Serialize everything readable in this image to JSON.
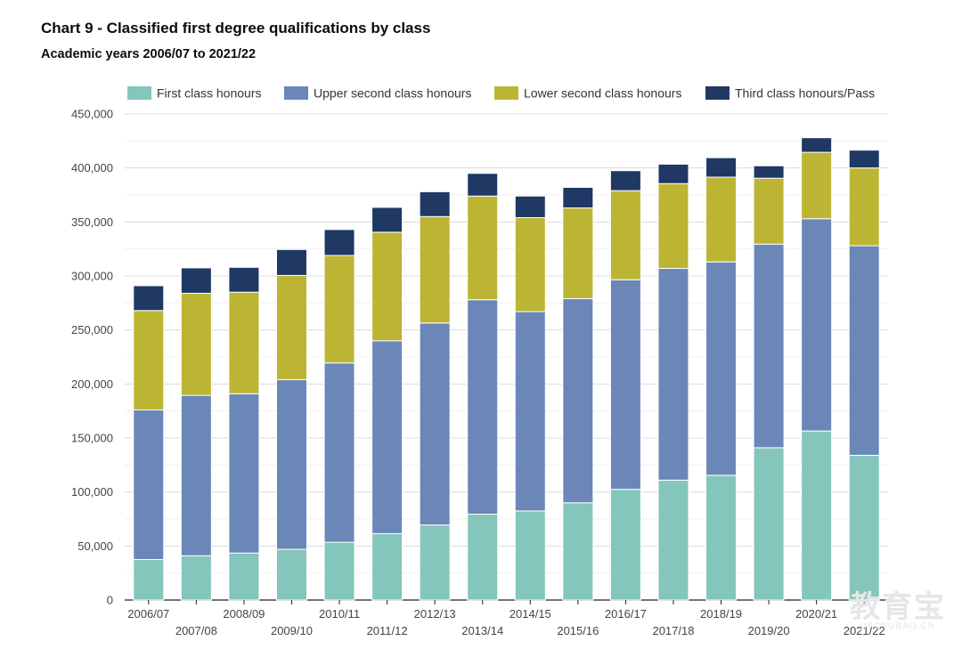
{
  "title": "Chart 9 - Classified first degree qualifications by class",
  "subtitle": "Academic years 2006/07 to 2021/22",
  "watermark": {
    "big": "教育宝",
    "small": "JIAOYUBAO.CN"
  },
  "colors": {
    "first": "#84c6bb",
    "upper": "#6b87b8",
    "lower": "#bcb533",
    "third": "#1f3864",
    "grid": "#dcdcdc",
    "axis": "#222222"
  },
  "chart_data": {
    "type": "bar",
    "stacked": true,
    "legend_position": "top",
    "grid": true,
    "categories": [
      "2006/07",
      "2007/08",
      "2008/09",
      "2009/10",
      "2010/11",
      "2011/12",
      "2012/13",
      "2013/14",
      "2014/15",
      "2015/16",
      "2016/17",
      "2017/18",
      "2018/19",
      "2019/20",
      "2020/21",
      "2021/22"
    ],
    "ylim": [
      0,
      450000
    ],
    "yticks": [
      0,
      50000,
      100000,
      150000,
      200000,
      250000,
      300000,
      350000,
      400000,
      450000
    ],
    "ytick_labels": [
      "0",
      "50,000",
      "100,000",
      "150,000",
      "200,000",
      "250,000",
      "300,000",
      "350,000",
      "400,000",
      "450,000"
    ],
    "series": [
      {
        "name": "First class honours",
        "key": "first",
        "values": [
          37500,
          41000,
          43500,
          47000,
          53500,
          61500,
          69500,
          79500,
          82500,
          90000,
          102500,
          111000,
          115500,
          141000,
          156500,
          134000
        ]
      },
      {
        "name": "Upper second class honours",
        "key": "upper",
        "values": [
          138500,
          148500,
          147500,
          157000,
          166000,
          178500,
          187000,
          198500,
          184500,
          189000,
          194000,
          196000,
          197500,
          188500,
          196500,
          194000
        ]
      },
      {
        "name": "Lower second class honours",
        "key": "lower",
        "values": [
          92000,
          94500,
          94000,
          96500,
          99500,
          100500,
          98500,
          96000,
          87000,
          84000,
          82500,
          78500,
          78500,
          61000,
          61500,
          72000
        ]
      },
      {
        "name": "Third class honours/Pass",
        "key": "third",
        "values": [
          23000,
          23500,
          23000,
          24000,
          24000,
          23000,
          23000,
          21000,
          20000,
          19000,
          18500,
          18000,
          18000,
          11500,
          13500,
          16500
        ]
      }
    ]
  }
}
